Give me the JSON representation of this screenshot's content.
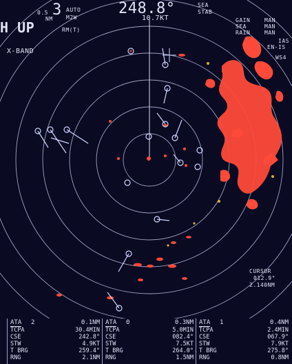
{
  "header": {
    "range_scale": "3",
    "range_unit": "NM",
    "ring_interval": "0.5",
    "gain_mode": "AUTO",
    "pulse": "M2W",
    "orientation": "H UP",
    "motion": "RM(T)",
    "heading": "248.8°",
    "speed": "10.7KT",
    "sea_mode": "SEA",
    "stab_mode": "STAB",
    "band": "X-BAND"
  },
  "controls": {
    "gain": {
      "label": "GAIN",
      "value": "MAN"
    },
    "sea": {
      "label": "SEA",
      "value": "MAN"
    },
    "rain": {
      "label": "RAIN",
      "value": "MAN"
    },
    "ias": "IAS",
    "en": "EN-IS",
    "ws": "WS4"
  },
  "cursor": {
    "label": "CURSOR",
    "bearing": "012.9°",
    "range": "2.140NM"
  },
  "ata": [
    {
      "title": "ATA",
      "id": "2",
      "top_value": "0.1NM",
      "rows": [
        {
          "key": "TCPA",
          "value": "30.4MIN"
        },
        {
          "key": "CSE",
          "value": "242.8°"
        },
        {
          "key": "STW",
          "value": "4.9KT"
        },
        {
          "key": "T BRG",
          "value": "259.4°"
        },
        {
          "key": "RNG",
          "value": "2.1NM"
        }
      ]
    },
    {
      "title": "ATA",
      "id": "0",
      "top_value": "0.3NM",
      "rows": [
        {
          "key": "TCPA",
          "value": "5.0MIN"
        },
        {
          "key": "CSE",
          "value": "082.4°"
        },
        {
          "key": "STW",
          "value": "7.5KT"
        },
        {
          "key": "T BRG",
          "value": "264.0°"
        },
        {
          "key": "RNG",
          "value": "1.5NM"
        }
      ]
    },
    {
      "title": "ATA",
      "id": "1",
      "top_value": "0.4NM",
      "rows": [
        {
          "key": "TCPA",
          "value": "2.4MIN"
        },
        {
          "key": "CSE",
          "value": "067.9°"
        },
        {
          "key": "STW",
          "value": "7.9KT"
        },
        {
          "key": "T BRG",
          "value": "275.8°"
        },
        {
          "key": "RNG",
          "value": "0.8NM"
        }
      ]
    }
  ],
  "colors": {
    "background": "#0a0a22",
    "rings": "#b9bfe0",
    "echo": "#ff4a3a",
    "echo_weak": "#e8c23a",
    "target_symbol": "#cfd6ff",
    "text": "#dfe3f5"
  }
}
